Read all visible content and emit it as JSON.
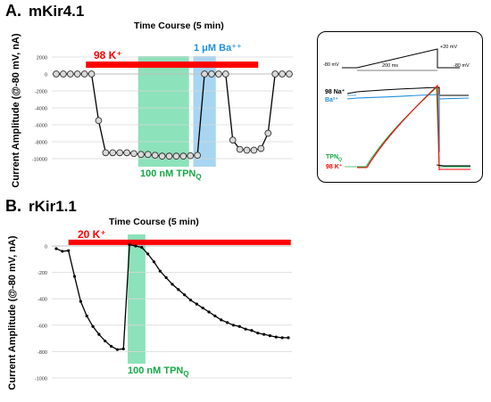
{
  "panel_a": {
    "letter": "A.",
    "name": "mKir4.1"
  },
  "panel_b": {
    "letter": "B.",
    "name": "rKir1.1"
  },
  "colors": {
    "red": "#ff0000",
    "green": "#7fdfb2",
    "blue": "#9fd0ef",
    "ba_blue": "#1f8fe0",
    "tpn_green": "#15a845",
    "trace": "#000000",
    "marker_fill": "#d9d9d9"
  },
  "chart_data": [
    {
      "id": "mkir41_timecourse",
      "type": "line",
      "title": "Time Course (5 min)",
      "ylabel": "Current Amplitude (@-80 mV, nA)",
      "ylim": [
        -10000,
        2000
      ],
      "yticks": [
        2000,
        0,
        -2000,
        -4000,
        -6000,
        -8000,
        -10000
      ],
      "grid": true,
      "markers": "circle",
      "values": [
        0,
        0,
        0,
        0,
        0,
        0,
        -5500,
        -9300,
        -9300,
        -9300,
        -9300,
        -9400,
        -9500,
        -9500,
        -9600,
        -9700,
        -9700,
        -9700,
        -9700,
        -9650,
        -9600,
        0,
        0,
        0,
        0,
        -7800,
        -8900,
        -9000,
        -9000,
        -8800,
        -7000,
        0,
        0,
        0
      ],
      "annotations": [
        {
          "text": "98 K⁺",
          "color": "#ff0000",
          "from_index": 4.2,
          "to_index": 28.6,
          "level": 1100
        },
        {
          "text": "100 nM TPN₁",
          "color": "#15a845",
          "from_index": 11.6,
          "to_index": 18.8
        },
        {
          "text": "1 μM Ba⁺⁺",
          "color": "#1f8fe0",
          "from_index": 19.4,
          "to_index": 22.6
        }
      ]
    },
    {
      "id": "rkir11_timecourse",
      "type": "line",
      "title": "Time Course (5 min)",
      "ylabel": "Current Amplitude (@-80 mV, nA)",
      "ylim": [
        -1000,
        0
      ],
      "yticks": [
        0,
        -200,
        -400,
        -600,
        -800,
        -1000
      ],
      "grid": true,
      "markers": "dot",
      "values": [
        -20,
        -40,
        -35,
        -230,
        -420,
        -530,
        -610,
        -670,
        -720,
        -760,
        -785,
        -780,
        10,
        0,
        -10,
        -60,
        -120,
        -190,
        -240,
        -290,
        -330,
        -370,
        -410,
        -440,
        -470,
        -500,
        -530,
        -560,
        -580,
        -600,
        -610,
        -630,
        -640,
        -660,
        -670,
        -680,
        -690,
        -695,
        -695
      ],
      "annotations": [
        {
          "text": "20 K⁺",
          "color": "#ff0000",
          "from_index": 2.0,
          "to_index": 38.4,
          "level": 28
        },
        {
          "text": "100 nM TPN₁",
          "color": "#15a845",
          "from_index": 11.7,
          "to_index": 14.6
        }
      ]
    },
    {
      "id": "mkir41_inset_traces",
      "type": "line",
      "protocol": {
        "v_hold": "-80 mV",
        "v_step": "+20 mV",
        "v_end": "-80 mV",
        "duration": "200 ms"
      },
      "series": [
        {
          "name": "98 Na⁺",
          "color": "#000000"
        },
        {
          "name": "Ba²⁺",
          "color": "#1f8fe0"
        },
        {
          "name": "TPN₁",
          "color": "#15a845"
        },
        {
          "name": "98 K⁺",
          "color": "#ff0000"
        }
      ]
    }
  ],
  "labels": {
    "a_k": "98 K⁺",
    "a_tpn": "100 nM TPN",
    "a_tpn_sub": "Q",
    "a_ba": "1 μM Ba⁺⁺",
    "b_k": "20 K⁺",
    "b_tpn": "100 nM TPN",
    "b_tpn_sub": "Q",
    "inset_v1": "-80 mV",
    "inset_v2": "+20 mV",
    "inset_v3": "-80 mV",
    "inset_dur": "200 ms",
    "inset_na": "98 Na⁺",
    "inset_ba": "Ba²⁺",
    "inset_tpn": "TPN",
    "inset_tpn_sub": "Q",
    "inset_k": "98 K⁺"
  }
}
